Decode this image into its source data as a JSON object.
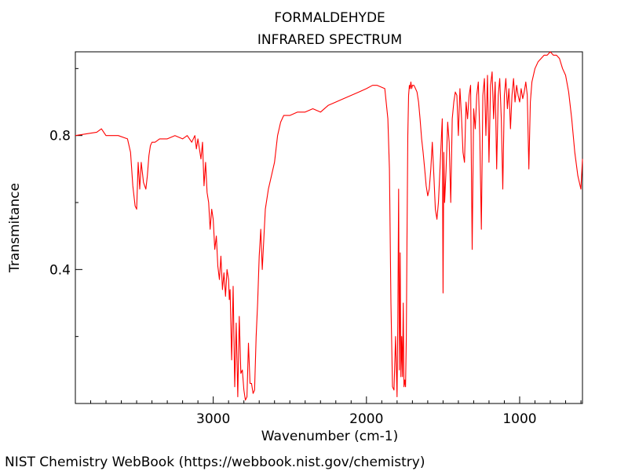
{
  "chart_data": {
    "type": "line",
    "title": "FORMALDEHYDE",
    "subtitle": "INFRARED SPECTRUM",
    "xlabel": "Wavenumber (cm-1)",
    "ylabel": "Transmitance",
    "xlim": [
      3900,
      590
    ],
    "ylim": [
      0.0,
      1.05
    ],
    "x_reversed": true,
    "x_ticks": [
      3000,
      2000,
      1000
    ],
    "x_tick_labels": [
      "3000",
      "2000",
      "1000"
    ],
    "x_minor_step": 100,
    "y_ticks": [
      0.4,
      0.8
    ],
    "y_tick_labels": [
      "0.4",
      "0.8"
    ],
    "y_minor_step": 0.2,
    "grid": false,
    "line_color": "#ff0000",
    "series": [
      {
        "x": [
          3900,
          3760,
          3730,
          3700,
          3660,
          3620,
          3560,
          3540,
          3525,
          3510,
          3500,
          3490,
          3480,
          3470,
          3455,
          3440,
          3430,
          3420,
          3410,
          3400,
          3380,
          3350,
          3300,
          3250,
          3200,
          3170,
          3140,
          3120,
          3110,
          3100,
          3080,
          3070,
          3060,
          3050,
          3040,
          3030,
          3020,
          3010,
          3000,
          2990,
          2980,
          2970,
          2960,
          2950,
          2940,
          2930,
          2920,
          2910,
          2900,
          2895,
          2890,
          2880,
          2870,
          2860,
          2850,
          2840,
          2830,
          2820,
          2810,
          2800,
          2790,
          2780,
          2770,
          2760,
          2750,
          2740,
          2730,
          2720,
          2710,
          2700,
          2690,
          2680,
          2660,
          2640,
          2620,
          2600,
          2580,
          2560,
          2540,
          2500,
          2450,
          2400,
          2350,
          2300,
          2250,
          2200,
          2150,
          2100,
          2050,
          2000,
          1960,
          1930,
          1880,
          1860,
          1850,
          1840,
          1830,
          1820,
          1810,
          1800,
          1795,
          1790,
          1785,
          1780,
          1775,
          1770,
          1765,
          1760,
          1755,
          1750,
          1745,
          1740,
          1735,
          1730,
          1725,
          1720,
          1715,
          1710,
          1705,
          1700,
          1690,
          1680,
          1670,
          1660,
          1650,
          1640,
          1630,
          1620,
          1610,
          1600,
          1590,
          1580,
          1570,
          1560,
          1550,
          1540,
          1530,
          1520,
          1510,
          1505,
          1500,
          1495,
          1490,
          1480,
          1470,
          1460,
          1450,
          1440,
          1430,
          1420,
          1410,
          1400,
          1390,
          1380,
          1370,
          1360,
          1350,
          1340,
          1330,
          1320,
          1310,
          1300,
          1290,
          1280,
          1270,
          1260,
          1250,
          1240,
          1230,
          1220,
          1210,
          1200,
          1190,
          1180,
          1170,
          1160,
          1150,
          1140,
          1130,
          1120,
          1110,
          1100,
          1090,
          1080,
          1070,
          1060,
          1050,
          1040,
          1030,
          1020,
          1010,
          1000,
          990,
          980,
          970,
          960,
          950,
          940,
          930,
          920,
          900,
          880,
          860,
          840,
          820,
          800,
          780,
          760,
          740,
          720,
          700,
          680,
          660,
          640,
          620,
          600,
          590
        ],
        "y": [
          0.8,
          0.81,
          0.82,
          0.8,
          0.8,
          0.8,
          0.79,
          0.75,
          0.65,
          0.59,
          0.58,
          0.72,
          0.64,
          0.72,
          0.66,
          0.64,
          0.68,
          0.74,
          0.77,
          0.78,
          0.78,
          0.79,
          0.79,
          0.8,
          0.79,
          0.8,
          0.78,
          0.8,
          0.76,
          0.79,
          0.73,
          0.78,
          0.65,
          0.72,
          0.63,
          0.6,
          0.52,
          0.58,
          0.55,
          0.46,
          0.5,
          0.41,
          0.37,
          0.44,
          0.34,
          0.39,
          0.32,
          0.4,
          0.37,
          0.31,
          0.34,
          0.13,
          0.35,
          0.05,
          0.24,
          0.02,
          0.26,
          0.09,
          0.1,
          0.04,
          0.01,
          0.02,
          0.18,
          0.06,
          0.06,
          0.03,
          0.04,
          0.2,
          0.3,
          0.44,
          0.52,
          0.4,
          0.58,
          0.64,
          0.68,
          0.72,
          0.8,
          0.84,
          0.86,
          0.86,
          0.87,
          0.87,
          0.88,
          0.87,
          0.89,
          0.9,
          0.91,
          0.92,
          0.93,
          0.94,
          0.95,
          0.95,
          0.94,
          0.85,
          0.7,
          0.3,
          0.05,
          0.04,
          0.2,
          0.02,
          0.25,
          0.64,
          0.1,
          0.45,
          0.08,
          0.2,
          0.08,
          0.3,
          0.05,
          0.07,
          0.05,
          0.2,
          0.5,
          0.8,
          0.92,
          0.95,
          0.94,
          0.96,
          0.94,
          0.95,
          0.95,
          0.94,
          0.93,
          0.9,
          0.85,
          0.79,
          0.75,
          0.7,
          0.65,
          0.62,
          0.64,
          0.7,
          0.78,
          0.68,
          0.58,
          0.55,
          0.6,
          0.7,
          0.8,
          0.85,
          0.33,
          0.75,
          0.6,
          0.7,
          0.84,
          0.78,
          0.6,
          0.85,
          0.9,
          0.93,
          0.92,
          0.8,
          0.94,
          0.86,
          0.75,
          0.72,
          0.9,
          0.85,
          0.92,
          0.95,
          0.46,
          0.88,
          0.82,
          0.92,
          0.96,
          0.8,
          0.52,
          0.92,
          0.97,
          0.8,
          0.98,
          0.72,
          0.95,
          0.99,
          0.85,
          0.96,
          0.7,
          0.92,
          0.97,
          0.85,
          0.64,
          0.92,
          0.97,
          0.88,
          0.94,
          0.82,
          0.92,
          0.97,
          0.9,
          0.95,
          0.92,
          0.9,
          0.94,
          0.91,
          0.93,
          0.96,
          0.92,
          0.7,
          0.9,
          0.96,
          1.0,
          1.02,
          1.03,
          1.04,
          1.04,
          1.05,
          1.04,
          1.04,
          1.03,
          1.0,
          0.98,
          0.93,
          0.85,
          0.75,
          0.68,
          0.64,
          0.73
        ]
      }
    ]
  },
  "footer": {
    "credit": "NIST Chemistry WebBook (https://webbook.nist.gov/chemistry)"
  }
}
